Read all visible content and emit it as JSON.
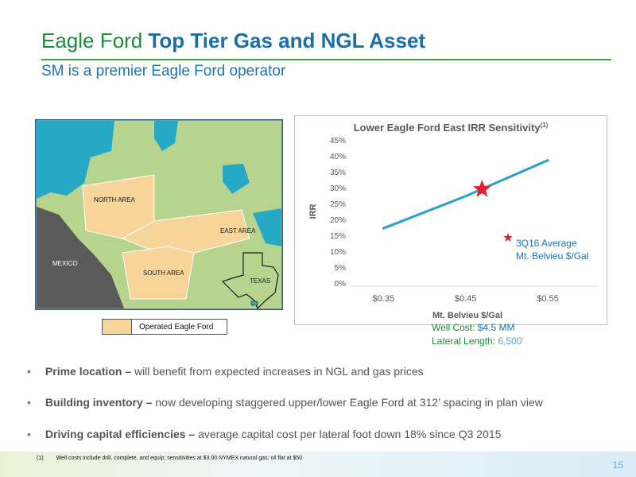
{
  "header": {
    "title_part1": "Eagle Ford ",
    "title_part2": "Top Tier Gas and NGL Asset",
    "subtitle": "SM is a premier Eagle Ford operator"
  },
  "map": {
    "labels": {
      "north_area": "NORTH AREA",
      "east_area": "EAST AREA",
      "south_area": "SOUTH AREA",
      "mexico": "MEXICO",
      "texas": "TEXAS"
    },
    "legend": "Operated Eagle Ford",
    "colors": {
      "operated": "#f7d59a",
      "other": "#b7d48f",
      "water": "#26a9c5",
      "mexico": "#5a5a5a"
    }
  },
  "chart_data": {
    "type": "line",
    "title": "Lower Eagle Ford East IRR Sensitivity",
    "title_superscript": "(1)",
    "xlabel": "Mt. Belvieu $/Gal",
    "ylabel": "IRR",
    "x_ticks": [
      "$0.35",
      "$0.45",
      "$0.55"
    ],
    "x_tick_values": [
      0.35,
      0.45,
      0.55
    ],
    "y_ticks": [
      "0%",
      "5%",
      "10%",
      "15%",
      "20%",
      "25%",
      "30%",
      "35%",
      "40%",
      "45%"
    ],
    "xlim": [
      0.31,
      0.61
    ],
    "ylim": [
      0,
      45
    ],
    "series": [
      {
        "x": [
          0.35,
          0.45,
          0.55
        ],
        "y": [
          17.2,
          27.3,
          38.6
        ],
        "color": "#2aa1c9"
      }
    ],
    "highlight_point": {
      "x": 0.47,
      "y": 29.5,
      "color": "#e5202e"
    },
    "annotation": {
      "lines": [
        "3Q16 Average",
        "Mt. Belvieu $/Gal"
      ],
      "color": "#1e73b9"
    },
    "grid": false
  },
  "assumptions": {
    "well_cost_label": "Well Cost: ",
    "well_cost_value": "$4.5 MM",
    "lateral_label": "Lateral Length: ",
    "lateral_value": "6,500’"
  },
  "bullets": [
    {
      "bold": "Prime location – ",
      "text": "will benefit from expected increases in NGL and gas prices"
    },
    {
      "bold": "Building inventory – ",
      "text": "now developing staggered upper/lower Eagle Ford at 312’ spacing in plan view"
    },
    {
      "bold": "Driving capital efficiencies – ",
      "text": "average capital cost per lateral foot down 18% since Q3 2015"
    }
  ],
  "footer": {
    "footnote_num": "(1)",
    "footnote_text": "Well costs include drill, complete, and equip; sensitivities at $3.00 NYMEX natural gas; oil flat at $50",
    "page_number": "15"
  }
}
